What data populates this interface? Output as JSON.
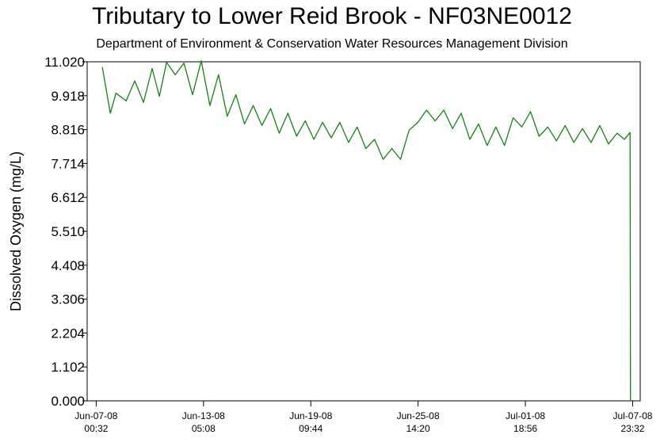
{
  "chart_data": {
    "type": "line",
    "title": "Tributary to Lower Reid Brook - NF03NE0012",
    "subtitle": "Department of Environment & Conservation Water Resources Management Division",
    "ylabel": "Dissolved Oxygen (mg/L)",
    "xlabel": "",
    "xlim": [
      "2008-06-06T12:00",
      "2008-07-08T10:00"
    ],
    "ylim": [
      0,
      11.02
    ],
    "yticks": [
      "0.000",
      "1.102",
      "2.204",
      "3.306",
      "4.408",
      "5.510",
      "6.612",
      "7.714",
      "8.816",
      "9.918",
      "11.020"
    ],
    "xticks": [
      {
        "x": "2008-06-07T00:32",
        "date": "Jun-07-08",
        "time": "00:32"
      },
      {
        "x": "2008-06-13T05:08",
        "date": "Jun-13-08",
        "time": "05:08"
      },
      {
        "x": "2008-06-19T09:44",
        "date": "Jun-19-08",
        "time": "09:44"
      },
      {
        "x": "2008-06-25T14:20",
        "date": "Jun-25-08",
        "time": "14:20"
      },
      {
        "x": "2008-07-01T18:56",
        "date": "Jul-01-08",
        "time": "18:56"
      },
      {
        "x": "2008-07-07T23:32",
        "date": "Jul-07-08",
        "time": "23:32"
      }
    ],
    "grid": false,
    "line_color": "#1a7d1a",
    "series": [
      {
        "x": [
          "2008-06-07T09:00",
          "2008-06-07T20:00",
          "2008-06-08T04:00",
          "2008-06-08T18:00",
          "2008-06-09T06:00",
          "2008-06-09T18:00",
          "2008-06-10T06:00",
          "2008-06-10T16:00",
          "2008-06-11T02:00",
          "2008-06-11T14:00",
          "2008-06-12T02:00",
          "2008-06-12T14:00",
          "2008-06-13T02:00",
          "2008-06-13T14:00",
          "2008-06-14T02:00",
          "2008-06-14T14:00",
          "2008-06-15T02:00",
          "2008-06-15T14:00",
          "2008-06-16T02:00",
          "2008-06-16T14:00",
          "2008-06-17T02:00",
          "2008-06-17T14:00",
          "2008-06-18T02:00",
          "2008-06-18T14:00",
          "2008-06-19T02:00",
          "2008-06-19T14:00",
          "2008-06-20T02:00",
          "2008-06-20T14:00",
          "2008-06-21T02:00",
          "2008-06-21T14:00",
          "2008-06-22T02:00",
          "2008-06-22T14:00",
          "2008-06-23T02:00",
          "2008-06-23T14:00",
          "2008-06-24T02:00",
          "2008-06-24T14:00",
          "2008-06-25T02:00",
          "2008-06-25T14:00",
          "2008-06-26T02:00",
          "2008-06-26T14:00",
          "2008-06-27T02:00",
          "2008-06-27T14:00",
          "2008-06-28T02:00",
          "2008-06-28T14:00",
          "2008-06-29T02:00",
          "2008-06-29T14:00",
          "2008-06-30T02:00",
          "2008-06-30T14:00",
          "2008-07-01T02:00",
          "2008-07-01T14:00",
          "2008-07-02T02:00",
          "2008-07-02T14:00",
          "2008-07-03T02:00",
          "2008-07-03T14:00",
          "2008-07-04T02:00",
          "2008-07-04T14:00",
          "2008-07-05T02:00",
          "2008-07-05T14:00",
          "2008-07-06T02:00",
          "2008-07-06T14:00",
          "2008-07-07T02:00",
          "2008-07-07T12:00",
          "2008-07-07T20:00",
          "2008-07-07T20:30"
        ],
        "y": [
          10.85,
          9.35,
          10.0,
          9.75,
          10.4,
          9.7,
          10.8,
          9.9,
          11.0,
          10.6,
          10.98,
          9.95,
          11.05,
          9.6,
          10.6,
          9.25,
          9.95,
          9.0,
          9.6,
          8.95,
          9.5,
          8.7,
          9.35,
          8.6,
          9.1,
          8.5,
          9.05,
          8.55,
          9.05,
          8.4,
          8.9,
          8.2,
          8.5,
          7.85,
          8.2,
          7.85,
          8.8,
          9.05,
          9.45,
          9.1,
          9.45,
          8.85,
          9.35,
          8.5,
          9.0,
          8.3,
          8.9,
          8.3,
          9.2,
          8.9,
          9.4,
          8.6,
          8.9,
          8.45,
          8.95,
          8.4,
          8.85,
          8.4,
          8.95,
          8.35,
          8.7,
          8.5,
          8.72,
          0.0
        ]
      }
    ]
  }
}
